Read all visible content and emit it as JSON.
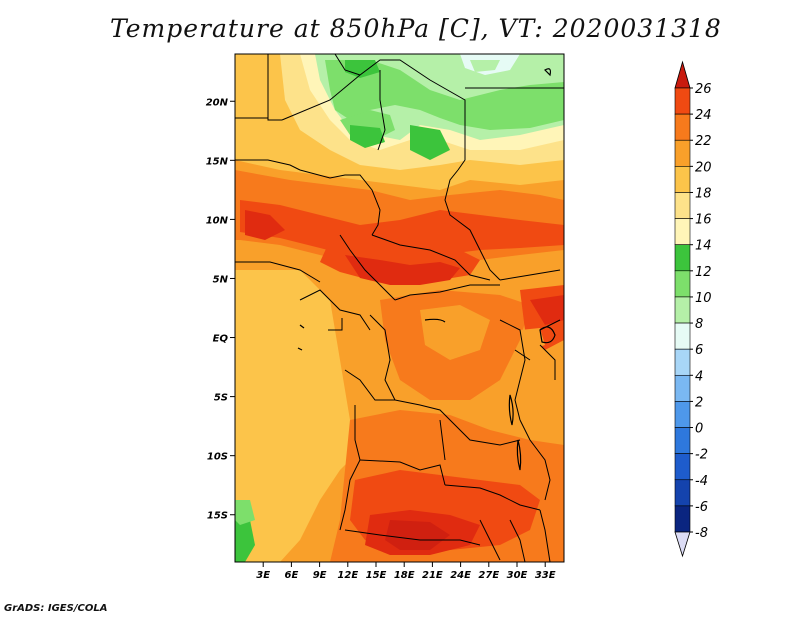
{
  "title": "Temperature at 850hPa [C], VT: 2020031318",
  "footer": "GrADS: IGES/COLA",
  "map": {
    "lat_range": [
      -19,
      24
    ],
    "lon_range": [
      0,
      35
    ],
    "lat_ticks": [
      {
        "value": 20,
        "label": "20N"
      },
      {
        "value": 15,
        "label": "15N"
      },
      {
        "value": 10,
        "label": "10N"
      },
      {
        "value": 5,
        "label": "5N"
      },
      {
        "value": 0,
        "label": "EQ"
      },
      {
        "value": -5,
        "label": "5S"
      },
      {
        "value": -10,
        "label": "10S"
      },
      {
        "value": -15,
        "label": "15S"
      }
    ],
    "lon_ticks": [
      {
        "value": 3,
        "label": "3E"
      },
      {
        "value": 6,
        "label": "6E"
      },
      {
        "value": 9,
        "label": "9E"
      },
      {
        "value": 12,
        "label": "12E"
      },
      {
        "value": 15,
        "label": "15E"
      },
      {
        "value": 18,
        "label": "18E"
      },
      {
        "value": 21,
        "label": "21E"
      },
      {
        "value": 24,
        "label": "24E"
      },
      {
        "value": 27,
        "label": "27E"
      },
      {
        "value": 30,
        "label": "30E"
      },
      {
        "value": 33,
        "label": "33E"
      }
    ]
  },
  "colorbar": {
    "levels": [
      {
        "label": "26",
        "color": "#e02b10"
      },
      {
        "label": "24",
        "color": "#f04a12"
      },
      {
        "label": "22",
        "color": "#f77a1c"
      },
      {
        "label": "20",
        "color": "#f9a02a"
      },
      {
        "label": "18",
        "color": "#fcc44a"
      },
      {
        "label": "16",
        "color": "#fde28a"
      },
      {
        "label": "14",
        "color": "#fff5b8"
      },
      {
        "label": "12",
        "color": "#3cc43c"
      },
      {
        "label": "10",
        "color": "#7ddf6b"
      },
      {
        "label": "8",
        "color": "#b5f0a8"
      },
      {
        "label": "6",
        "color": "#e6fbf5"
      },
      {
        "label": "4",
        "color": "#a8d6f7"
      },
      {
        "label": "2",
        "color": "#7ab8f2"
      },
      {
        "label": "0",
        "color": "#4e98ea"
      },
      {
        "label": "-2",
        "color": "#2e78dd"
      },
      {
        "label": "-4",
        "color": "#1e5ccc"
      },
      {
        "label": "-6",
        "color": "#1443ad"
      },
      {
        "label": "-8",
        "color": "#0a2580"
      }
    ],
    "top_triangle_color": "#c81a0e",
    "bottom_triangle_color": "#dcdcf5"
  }
}
